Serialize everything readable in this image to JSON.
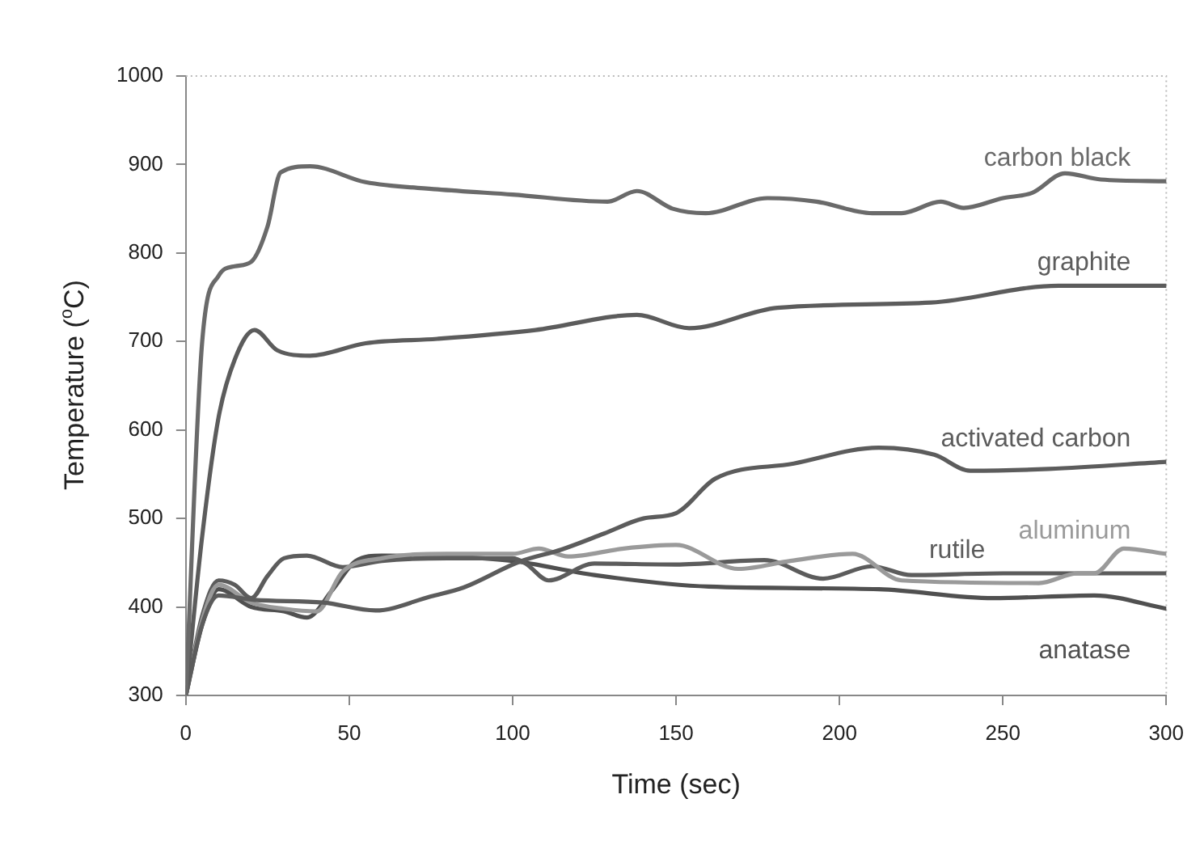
{
  "chart_data": {
    "type": "line",
    "xlabel": "Time (sec)",
    "ylabel": "Temperature ($^{o}$C)",
    "xlim": [
      0,
      300
    ],
    "xticks": [
      0,
      50,
      100,
      150,
      200,
      250,
      300
    ],
    "ylim": [
      300,
      1000
    ],
    "yticks": [
      300,
      400,
      500,
      600,
      700,
      800,
      900,
      1000
    ],
    "grid": false,
    "legend": false,
    "marker": "none",
    "line_style": "solid",
    "series": [
      {
        "name": "carbon black",
        "color": "#6a6a6a",
        "x": [
          0,
          5,
          10,
          15,
          20,
          25,
          29,
          38,
          55,
          77,
          100,
          129,
          138,
          149,
          159,
          178,
          193,
          210,
          219,
          231,
          238,
          250,
          259,
          269,
          280,
          300
        ],
        "values": [
          300,
          700,
          774,
          785,
          790,
          830,
          891,
          898,
          880,
          872,
          866,
          858,
          870,
          850,
          845,
          862,
          858,
          845,
          845,
          858,
          851,
          862,
          868,
          890,
          883,
          881
        ]
      },
      {
        "name": "graphite",
        "color": "#5c5c5c",
        "x": [
          0,
          5,
          10,
          15,
          21,
          28,
          38,
          55,
          77,
          107,
          138,
          154,
          181,
          228,
          267,
          300
        ],
        "values": [
          300,
          480,
          614,
          680,
          713,
          690,
          684,
          698,
          703,
          713,
          730,
          715,
          738,
          744,
          763,
          763
        ]
      },
      {
        "name": "activated carbon",
        "color": "#5c5c5c",
        "x": [
          0,
          5,
          10,
          21,
          42,
          58,
          75,
          85,
          102,
          115,
          128,
          140,
          150,
          162,
          186,
          212,
          229,
          240,
          264,
          300
        ],
        "values": [
          300,
          380,
          413,
          408,
          405,
          396,
          412,
          422,
          451,
          465,
          483,
          500,
          506,
          545,
          562,
          580,
          572,
          554,
          556,
          564
        ]
      },
      {
        "name": "aluminum",
        "color": "#9a9a9a",
        "x": [
          0,
          5,
          10,
          20,
          30,
          40,
          48,
          60,
          80,
          100,
          108,
          117,
          134,
          150,
          169,
          185,
          204,
          219,
          261,
          273,
          278,
          287,
          300
        ],
        "values": [
          300,
          385,
          425,
          405,
          398,
          395,
          440,
          455,
          460,
          460,
          466,
          457,
          466,
          470,
          443,
          452,
          460,
          430,
          427,
          438,
          438,
          466,
          460
        ]
      },
      {
        "name": "rutile",
        "color": "#5c5c5c",
        "x": [
          0,
          5,
          10,
          15,
          20,
          25,
          30,
          37,
          48,
          60,
          80,
          100,
          104,
          111,
          125,
          150,
          177,
          195,
          210,
          222,
          250,
          300
        ],
        "values": [
          300,
          390,
          430,
          425,
          410,
          435,
          455,
          458,
          445,
          452,
          455,
          455,
          449,
          430,
          449,
          448,
          453,
          432,
          446,
          436,
          438,
          438
        ]
      },
      {
        "name": "anatase",
        "color": "#505050",
        "x": [
          0,
          5,
          10,
          20,
          30,
          37,
          45,
          52,
          60,
          80,
          100,
          125,
          160,
          212,
          247,
          278,
          300
        ],
        "values": [
          300,
          380,
          420,
          400,
          395,
          388,
          420,
          452,
          458,
          457,
          452,
          436,
          423,
          420,
          410,
          413,
          398
        ]
      }
    ]
  }
}
